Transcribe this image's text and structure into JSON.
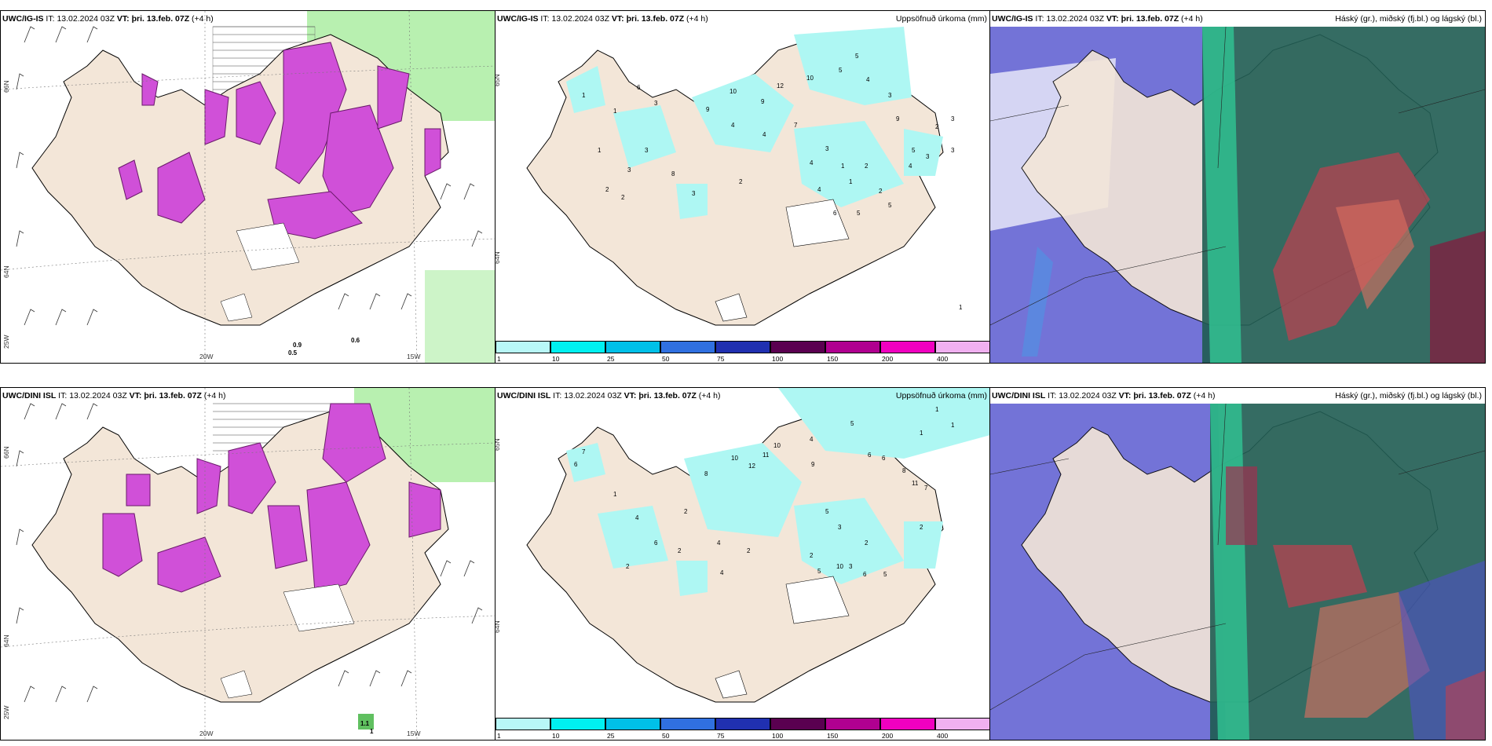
{
  "rows": [
    {
      "model": "UWC/IG-IS",
      "it_label": "IT:",
      "it_value": "13.02.2024 03Z",
      "vt_label": "VT:",
      "vt_value": "þri. 13.feb. 07Z",
      "lead": "(+4 h)",
      "wind_panel": {
        "lat_labels": [
          "66N",
          "64N",
          "25W"
        ],
        "lon_labels": [
          "20W",
          "15W"
        ],
        "precip_values": [
          "0.9",
          "0.5",
          "0.6"
        ]
      },
      "precip_panel": {
        "title": "Uppsöfnuð úrkoma (mm)",
        "lat_labels": [
          "65N",
          "64N"
        ],
        "amounts": [
          "1",
          "3",
          "6",
          "3",
          "1",
          "9",
          "4",
          "10",
          "9",
          "12",
          "10",
          "5",
          "5",
          "4",
          "3",
          "7",
          "4",
          "3",
          "2",
          "1",
          "8",
          "3",
          "2",
          "4",
          "2",
          "9",
          "5",
          "3",
          "4",
          "5",
          "6",
          "5",
          "4",
          "1",
          "2",
          "2",
          "3",
          "1",
          "3",
          "2",
          "3",
          "1"
        ]
      },
      "cloud_panel": {
        "title": "Háský (gr.), miðský (fj.bl.) og lágský (bl.)"
      }
    },
    {
      "model": "UWC/DINI ISL",
      "it_label": "IT:",
      "it_value": "13.02.2024 03Z",
      "vt_label": "VT:",
      "vt_value": "þri. 13.feb. 07Z",
      "lead": "(+4 h)",
      "wind_panel": {
        "lat_labels": [
          "66N",
          "64N",
          "25W"
        ],
        "lon_labels": [
          "20W",
          "15W"
        ],
        "precip_values": [
          "1.1",
          "1"
        ]
      },
      "precip_panel": {
        "title": "Uppsöfnuð úrkoma (mm)",
        "lat_labels": [
          "65N",
          "64N"
        ],
        "amounts": [
          "7",
          "6",
          "1",
          "4",
          "6",
          "8",
          "2",
          "10",
          "12",
          "11",
          "10",
          "4",
          "9",
          "5",
          "6",
          "6",
          "1",
          "8",
          "11",
          "7",
          "2",
          "3",
          "5",
          "2",
          "4",
          "2",
          "3",
          "2",
          "5",
          "10",
          "6",
          "5",
          "4",
          "2",
          "2",
          "1",
          "1"
        ]
      },
      "cloud_panel": {
        "title": "Háský (gr.), miðský (fj.bl.) og lágský (bl.)"
      }
    }
  ],
  "colorbar": {
    "ticks": [
      "1",
      "10",
      "25",
      "50",
      "75",
      "100",
      "150",
      "200",
      "400"
    ],
    "colors": [
      "#b8f7f7",
      "#00f0f0",
      "#00c0e8",
      "#3070e0",
      "#2030b0",
      "#5a0050",
      "#b00090",
      "#f000c0",
      "#f0b0f0"
    ]
  },
  "colors": {
    "land": "#f3e6d8",
    "precip_light": "#aef7f3",
    "wind_precip": "#d050d8",
    "high_cloud": "#1f5c52",
    "mid_cloud": "#5050c8",
    "low_cloud": "#e06070",
    "green_shade": "#b8f0b0"
  }
}
